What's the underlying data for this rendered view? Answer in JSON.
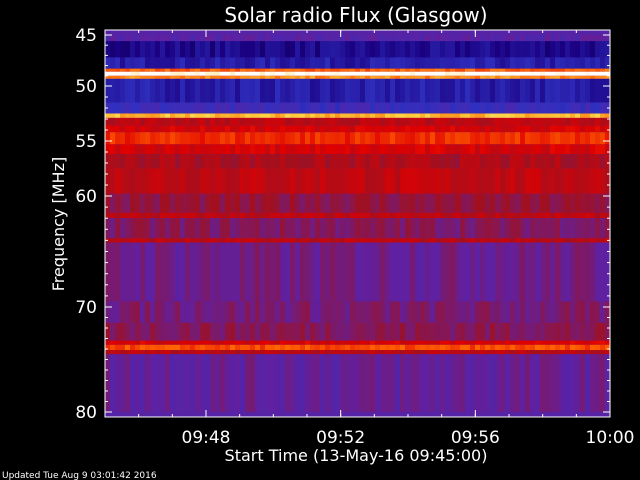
{
  "chart_data": {
    "type": "heatmap",
    "title": "Solar radio Flux (Glasgow)",
    "ylabel": "Frequency [MHz]",
    "xlabel": "Start Time (13-May-16 09:45:00)",
    "footer": "Updated Tue Aug  9 03:01:42 2016",
    "x_range_minutes": [
      0,
      15
    ],
    "y_range_mhz": [
      45,
      80
    ],
    "x_ticks": [
      {
        "label": "09:48",
        "minute": 3
      },
      {
        "label": "09:52",
        "minute": 7
      },
      {
        "label": "09:56",
        "minute": 11
      },
      {
        "label": "10:00",
        "minute": 15
      }
    ],
    "y_ticks": [
      {
        "label": "45",
        "mhz": 45
      },
      {
        "label": "50",
        "mhz": 50
      },
      {
        "label": "55",
        "mhz": 55
      },
      {
        "label": "60",
        "mhz": 60
      },
      {
        "label": "70",
        "mhz": 70
      },
      {
        "label": "80",
        "mhz": 80
      }
    ],
    "colormap": [
      "#000000",
      "#1a0080",
      "#3030c0",
      "#6020a0",
      "#a01020",
      "#e00000",
      "#ff6000",
      "#ffd040",
      "#ffffff"
    ],
    "bands": [
      {
        "from_mhz": 45.0,
        "to_mhz": 45.6,
        "level": 0.35
      },
      {
        "from_mhz": 45.6,
        "to_mhz": 47.2,
        "level": 0.15
      },
      {
        "from_mhz": 47.2,
        "to_mhz": 48.3,
        "level": 0.2
      },
      {
        "from_mhz": 48.3,
        "to_mhz": 48.6,
        "level": 0.75
      },
      {
        "from_mhz": 48.6,
        "to_mhz": 49.0,
        "level": 1.0
      },
      {
        "from_mhz": 49.0,
        "to_mhz": 49.3,
        "level": 0.8
      },
      {
        "from_mhz": 49.3,
        "to_mhz": 51.5,
        "level": 0.2
      },
      {
        "from_mhz": 51.5,
        "to_mhz": 52.5,
        "level": 0.28
      },
      {
        "from_mhz": 52.5,
        "to_mhz": 52.9,
        "level": 0.85
      },
      {
        "from_mhz": 52.9,
        "to_mhz": 53.6,
        "level": 0.55
      },
      {
        "from_mhz": 53.6,
        "to_mhz": 54.2,
        "level": 0.6
      },
      {
        "from_mhz": 54.2,
        "to_mhz": 55.3,
        "level": 0.68
      },
      {
        "from_mhz": 55.3,
        "to_mhz": 56.2,
        "level": 0.6
      },
      {
        "from_mhz": 56.2,
        "to_mhz": 57.5,
        "level": 0.52
      },
      {
        "from_mhz": 57.5,
        "to_mhz": 59.8,
        "level": 0.56
      },
      {
        "from_mhz": 59.8,
        "to_mhz": 61.5,
        "level": 0.47
      },
      {
        "from_mhz": 61.5,
        "to_mhz": 62.0,
        "level": 0.55
      },
      {
        "from_mhz": 62.0,
        "to_mhz": 63.8,
        "level": 0.44
      },
      {
        "from_mhz": 63.8,
        "to_mhz": 64.2,
        "level": 0.55
      },
      {
        "from_mhz": 64.2,
        "to_mhz": 69.5,
        "level": 0.4
      },
      {
        "from_mhz": 69.5,
        "to_mhz": 71.5,
        "level": 0.42
      },
      {
        "from_mhz": 71.5,
        "to_mhz": 73.2,
        "level": 0.45
      },
      {
        "from_mhz": 73.2,
        "to_mhz": 73.6,
        "level": 0.6
      },
      {
        "from_mhz": 73.6,
        "to_mhz": 74.1,
        "level": 0.72
      },
      {
        "from_mhz": 74.1,
        "to_mhz": 74.5,
        "level": 0.55
      },
      {
        "from_mhz": 74.5,
        "to_mhz": 80.0,
        "level": 0.38
      }
    ]
  }
}
